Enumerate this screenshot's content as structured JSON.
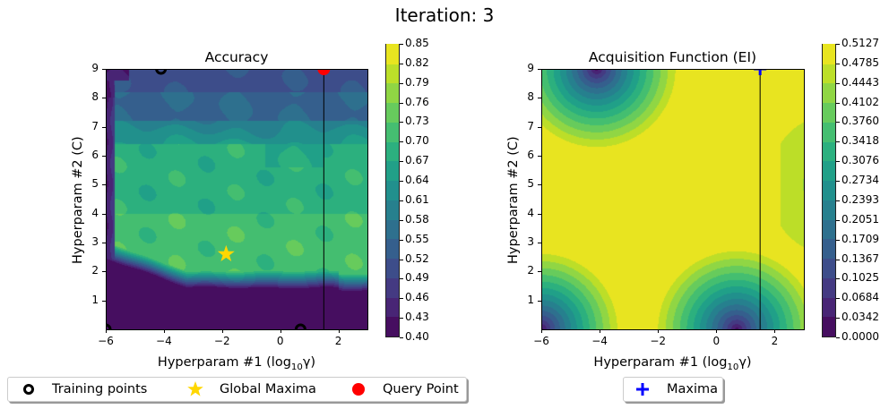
{
  "suptitle": "Iteration: 3",
  "chart_data": [
    {
      "type": "heatmap",
      "subtype": "filled-contour",
      "title": "Accuracy",
      "xlabel": "Hyperparam #1 (log10 γ)",
      "ylabel": "Hyperparam #2 (C)",
      "xlim": [
        -6,
        3
      ],
      "ylim": [
        0,
        9
      ],
      "xticks": [
        -6,
        -4,
        -2,
        0,
        2
      ],
      "yticks": [
        1,
        2,
        3,
        4,
        5,
        6,
        7,
        8,
        9
      ],
      "colormap": "viridis",
      "colorbar_ticks": [
        "0.85",
        "0.82",
        "0.79",
        "0.76",
        "0.73",
        "0.70",
        "0.67",
        "0.64",
        "0.61",
        "0.58",
        "0.55",
        "0.52",
        "0.49",
        "0.46",
        "0.43",
        "0.40"
      ],
      "colorbar_range": [
        0.4,
        0.85
      ],
      "regions": [
        {
          "description": "low region (bottom, C < ~2)",
          "value_approx": 0.41
        },
        {
          "description": "high plateau (C ~2.5–4)",
          "value_approx": 0.72
        },
        {
          "description": "mid band (C ~4–6.5)",
          "value_approx": 0.69
        },
        {
          "description": "transition (C ~6.5–7.3)",
          "value_approx": 0.6
        },
        {
          "description": "upper band (C ~7.3–9)",
          "value_approx": 0.52
        },
        {
          "description": "left edge (γ < -5.7)",
          "value_approx": 0.42
        }
      ],
      "training_points": [
        {
          "x": -4.1,
          "y": 9.0
        },
        {
          "x": -6.0,
          "y": 0.0
        },
        {
          "x": 0.7,
          "y": 0.0
        }
      ],
      "global_maxima": {
        "x": -1.86,
        "y": 2.6
      },
      "query_point": {
        "x": 1.5,
        "y": 9.0
      },
      "vertical_line_x": 1.5
    },
    {
      "type": "heatmap",
      "subtype": "filled-contour",
      "title": "Acquisition Function (EI)",
      "xlabel": "Hyperparam #1 (log10 γ)",
      "ylabel": "Hyperparam #2 (C)",
      "xlim": [
        -6,
        3
      ],
      "ylim": [
        0,
        9
      ],
      "xticks": [
        -6,
        -4,
        -2,
        0,
        2
      ],
      "yticks": [
        1,
        2,
        3,
        4,
        5,
        6,
        7,
        8,
        9
      ],
      "colormap": "viridis",
      "colorbar_ticks": [
        "0.5127",
        "0.4785",
        "0.4443",
        "0.4102",
        "0.3760",
        "0.3418",
        "0.3076",
        "0.2734",
        "0.2393",
        "0.2051",
        "0.1709",
        "0.1367",
        "0.1025",
        "0.0684",
        "0.0342",
        "0.0000"
      ],
      "colorbar_range": [
        0.0,
        0.5127
      ],
      "minima_centers": [
        {
          "x": -4.1,
          "y": 9.0
        },
        {
          "x": -6.0,
          "y": 0.0
        },
        {
          "x": 0.7,
          "y": 0.0
        }
      ],
      "secondary_low": {
        "x": 3.5,
        "y": 5.0
      },
      "maxima": {
        "x": 1.5,
        "y": 9.0
      },
      "vertical_line_x": 1.5
    }
  ],
  "left": {
    "title": "Accuracy",
    "xlabel_main": "Hyperparam #1 (log",
    "xlabel_sub": "10",
    "xlabel_end": "γ)",
    "ylabel": "Hyperparam #2 (C)",
    "xtick_labels": [
      "−6",
      "−4",
      "−2",
      "0",
      "2"
    ],
    "ytick_labels": [
      "1",
      "2",
      "3",
      "4",
      "5",
      "6",
      "7",
      "8",
      "9"
    ],
    "colorbar_labels": [
      "0.85",
      "0.82",
      "0.79",
      "0.76",
      "0.73",
      "0.70",
      "0.67",
      "0.64",
      "0.61",
      "0.58",
      "0.55",
      "0.52",
      "0.49",
      "0.46",
      "0.43",
      "0.40"
    ],
    "legend": [
      {
        "label": "Training points",
        "icon": "ring-marker-icon"
      },
      {
        "label": "Global Maxima",
        "icon": "star-marker-icon"
      },
      {
        "label": "Query Point",
        "icon": "red-dot-marker-icon"
      }
    ]
  },
  "right": {
    "title": "Acquisition Function (EI)",
    "xlabel_main": "Hyperparam #1 (log",
    "xlabel_sub": "10",
    "xlabel_end": "γ)",
    "ylabel": "Hyperparam #2 (C)",
    "xtick_labels": [
      "−6",
      "−4",
      "−2",
      "0",
      "2"
    ],
    "ytick_labels": [
      "1",
      "2",
      "3",
      "4",
      "5",
      "6",
      "7",
      "8",
      "9"
    ],
    "colorbar_labels": [
      "0.5127",
      "0.4785",
      "0.4443",
      "0.4102",
      "0.3760",
      "0.3418",
      "0.3076",
      "0.2734",
      "0.2393",
      "0.2051",
      "0.1709",
      "0.1367",
      "0.1025",
      "0.0684",
      "0.0342",
      "0.0000"
    ],
    "legend": [
      {
        "label": "Maxima",
        "icon": "plus-marker-icon"
      }
    ]
  },
  "colors": {
    "query_point": "#ff0000",
    "star": "#ffd700",
    "maxima_plus": "#0000ff",
    "training_ring": "#000000",
    "viridis_levels": [
      "#440154",
      "#481a6c",
      "#472f7d",
      "#414487",
      "#39568c",
      "#31688e",
      "#2a788e",
      "#23888e",
      "#1f988b",
      "#22a884",
      "#35b779",
      "#54c568",
      "#7ad151",
      "#a5db36",
      "#d2e21b",
      "#fde725"
    ]
  }
}
